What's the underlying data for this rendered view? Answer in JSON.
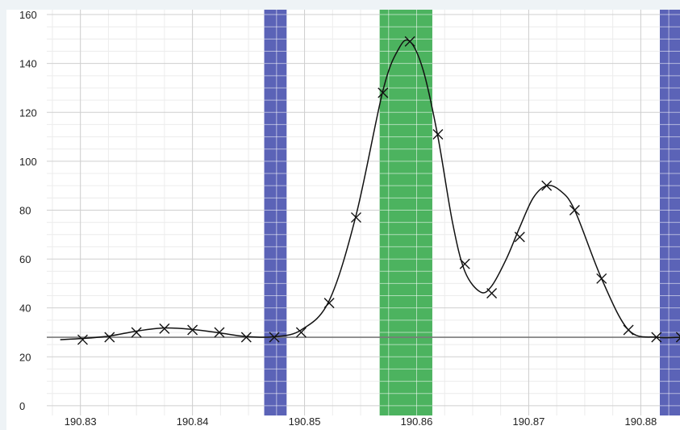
{
  "chart_data": {
    "type": "line",
    "title": "",
    "xlabel": "",
    "ylabel": "",
    "xlim": [
      190.827,
      190.8835
    ],
    "ylim": [
      -4,
      162
    ],
    "x_ticks": [
      "190.83",
      "190.84",
      "190.85",
      "190.86",
      "190.87",
      "190.88"
    ],
    "x_tick_values": [
      190.83,
      190.84,
      190.85,
      190.86,
      190.87,
      190.88
    ],
    "y_ticks": [
      "0",
      "20",
      "40",
      "60",
      "80",
      "100",
      "120",
      "140",
      "160"
    ],
    "y_tick_values": [
      0,
      20,
      40,
      60,
      80,
      100,
      120,
      140,
      160
    ],
    "baseline": 28,
    "grid": true,
    "series": [
      {
        "marker": "x",
        "x": [
          190.8302,
          190.8326,
          190.835,
          190.8375,
          190.84,
          190.8424,
          190.8448,
          190.8473,
          190.8497,
          190.8522,
          190.8546,
          190.857,
          190.8594,
          190.8619,
          190.8643,
          190.8667,
          190.8692,
          190.8716,
          190.8741,
          190.8765,
          190.8789,
          190.8814,
          190.8836
        ],
        "y": [
          27,
          28,
          30,
          31.5,
          31,
          30,
          28,
          28,
          30,
          42,
          77,
          128,
          149,
          111,
          58,
          46,
          69,
          90,
          80,
          52,
          31,
          28,
          28
        ]
      }
    ],
    "curve": {
      "x": [
        190.8282,
        190.8302,
        190.8326,
        190.835,
        190.8375,
        190.84,
        190.8424,
        190.8448,
        190.8473,
        190.8497,
        190.8522,
        190.8546,
        190.857,
        190.8584,
        190.8594,
        190.8606,
        190.8619,
        190.8632,
        190.8643,
        190.8657,
        190.8667,
        190.868,
        190.8692,
        190.8704,
        190.8716,
        190.8728,
        190.8741,
        190.8765,
        190.8789,
        190.8814,
        190.8836
      ],
      "y": [
        27,
        27.5,
        28.5,
        30.5,
        31.8,
        31.2,
        29.8,
        28.3,
        28.2,
        31,
        43,
        78,
        129,
        146,
        149,
        137,
        110,
        75,
        55,
        46.5,
        49,
        60,
        73,
        85,
        90,
        88,
        80,
        52,
        31,
        28,
        28
      ]
    },
    "highlight_bands": [
      {
        "color": "#5b63b7",
        "x_start": 190.8464,
        "x_end": 190.8484
      },
      {
        "color": "#4cb35f",
        "x_start": 190.8567,
        "x_end": 190.8614
      },
      {
        "color": "#5b63b7",
        "x_start": 190.8817,
        "x_end": 190.8835
      }
    ],
    "colors": {
      "line": "#111111",
      "baseline": "#7a7a7a",
      "major_grid": "#cfcfcf",
      "minor_grid": "#ececec"
    }
  }
}
